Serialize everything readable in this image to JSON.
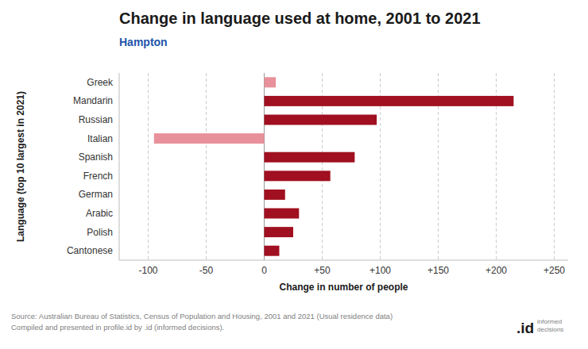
{
  "chart_data": {
    "type": "bar",
    "orientation": "horizontal",
    "title": "Change in language used at home, 2001 to 2021",
    "subtitle": "Hampton",
    "x_label": "Change in number of people",
    "y_label": "Language (top 10 largest in 2021)",
    "annotations": [
      "Source: Australian Bureau of Statistics, Census of Population and Housing, 2001 and 2021 (Usual residence data)",
      "Compiled and presented in profile.id by .id (informed decisions).",
      ".id",
      "informed",
      "decisions"
    ],
    "categories": [
      "Cantonese",
      "Polish",
      "Arabic",
      "German",
      "French",
      "Spanish",
      "Italian",
      "Russian",
      "Mandarin",
      "Greek"
    ],
    "values": [
      13,
      25,
      30,
      18,
      57,
      78,
      -95,
      97,
      215,
      10
    ],
    "colors": [
      "#a01020",
      "#a01020",
      "#a01020",
      "#a01020",
      "#a01020",
      "#a01020",
      "#e8919a",
      "#a01020",
      "#a01020",
      "#e8919a"
    ],
    "xlim": [
      -125,
      262
    ],
    "xticks": [
      -100,
      -50,
      0,
      {
        "value": 50,
        "label": "+50"
      },
      {
        "value": 100,
        "label": "+100"
      },
      {
        "value": 150,
        "label": "+150"
      },
      {
        "value": 200,
        "label": "+200"
      },
      {
        "value": 250,
        "label": "+250"
      }
    ],
    "grid": true
  }
}
